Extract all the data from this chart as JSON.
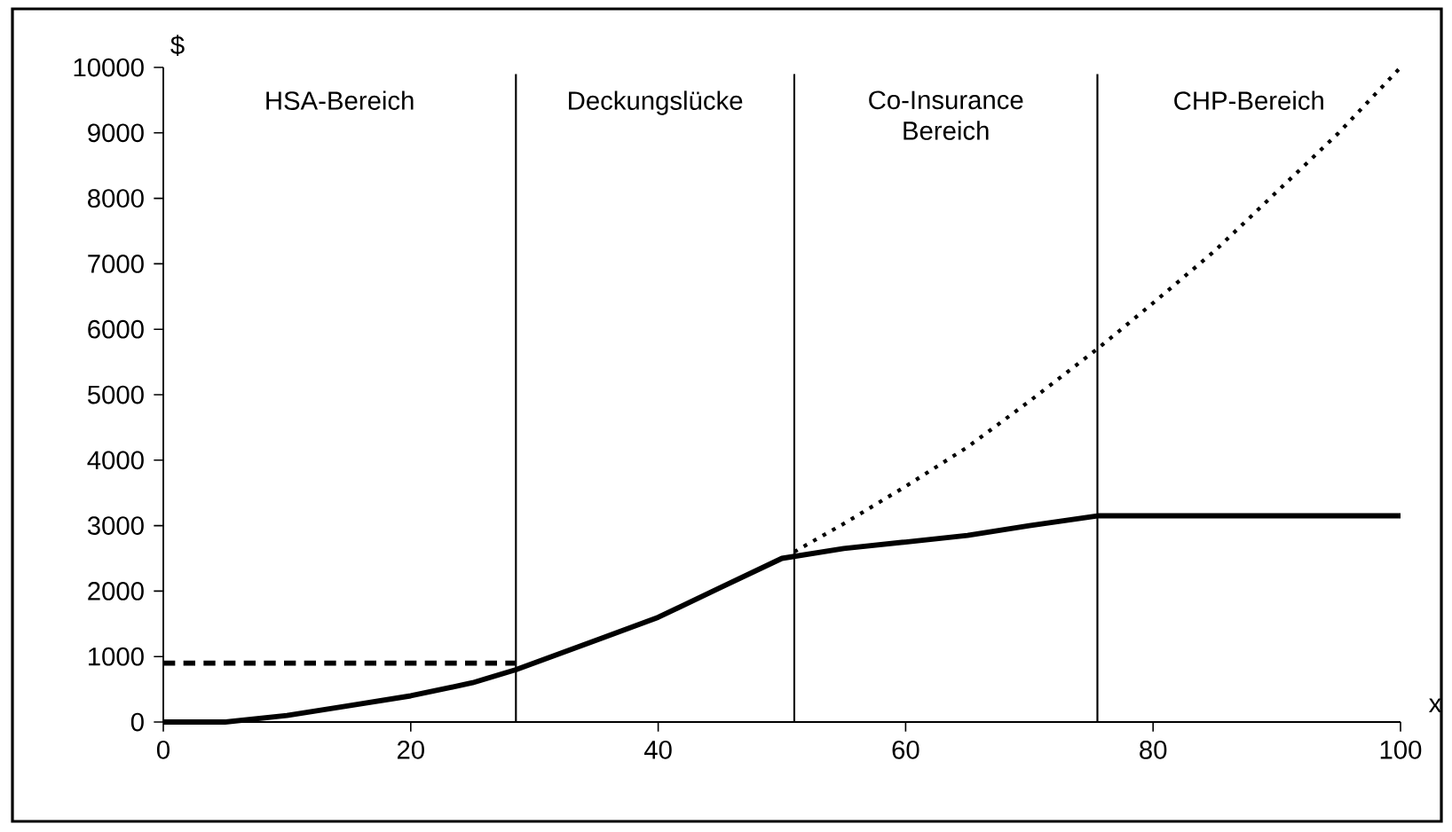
{
  "chart_data": {
    "type": "line",
    "xlabel": "x",
    "ylabel": "$",
    "xlim": [
      0,
      100
    ],
    "ylim": [
      0,
      10000
    ],
    "xticks": [
      0,
      20,
      40,
      60,
      80,
      100
    ],
    "yticks": [
      0,
      1000,
      2000,
      3000,
      4000,
      5000,
      6000,
      7000,
      8000,
      9000,
      10000
    ],
    "marker": "none",
    "series": [
      {
        "color": "#000000",
        "line_style": "solid",
        "x": [
          0,
          5,
          10,
          15,
          20,
          25,
          28.5,
          35,
          40,
          45,
          50,
          55,
          60,
          65,
          70,
          75.5,
          80,
          90,
          100
        ],
        "values": [
          0,
          0,
          100,
          250,
          400,
          600,
          800,
          1250,
          1600,
          2050,
          2500,
          2650,
          2750,
          2850,
          3000,
          3150,
          3150,
          3150,
          3150
        ]
      },
      {
        "color": "#000000",
        "line_style": "dashed",
        "x": [
          0,
          28.5
        ],
        "values": [
          900,
          900
        ]
      },
      {
        "color": "#000000",
        "line_style": "dotted",
        "x": [
          51,
          55,
          60,
          65,
          70,
          75.5,
          80,
          85,
          90,
          95,
          100
        ],
        "values": [
          2600,
          3030,
          3600,
          4200,
          4900,
          5700,
          6400,
          7200,
          8100,
          9000,
          10000
        ]
      }
    ],
    "ref_lines": [
      {
        "axis": "x",
        "value": 28.5,
        "color": "#000000"
      },
      {
        "axis": "x",
        "value": 51,
        "color": "#000000"
      },
      {
        "axis": "x",
        "value": 75.5,
        "color": "#000000"
      }
    ],
    "annotations": [
      "HSA-Bereich",
      "Deckungslücke",
      "Co-Insurance Bereich",
      "CHP-Bereich"
    ]
  }
}
